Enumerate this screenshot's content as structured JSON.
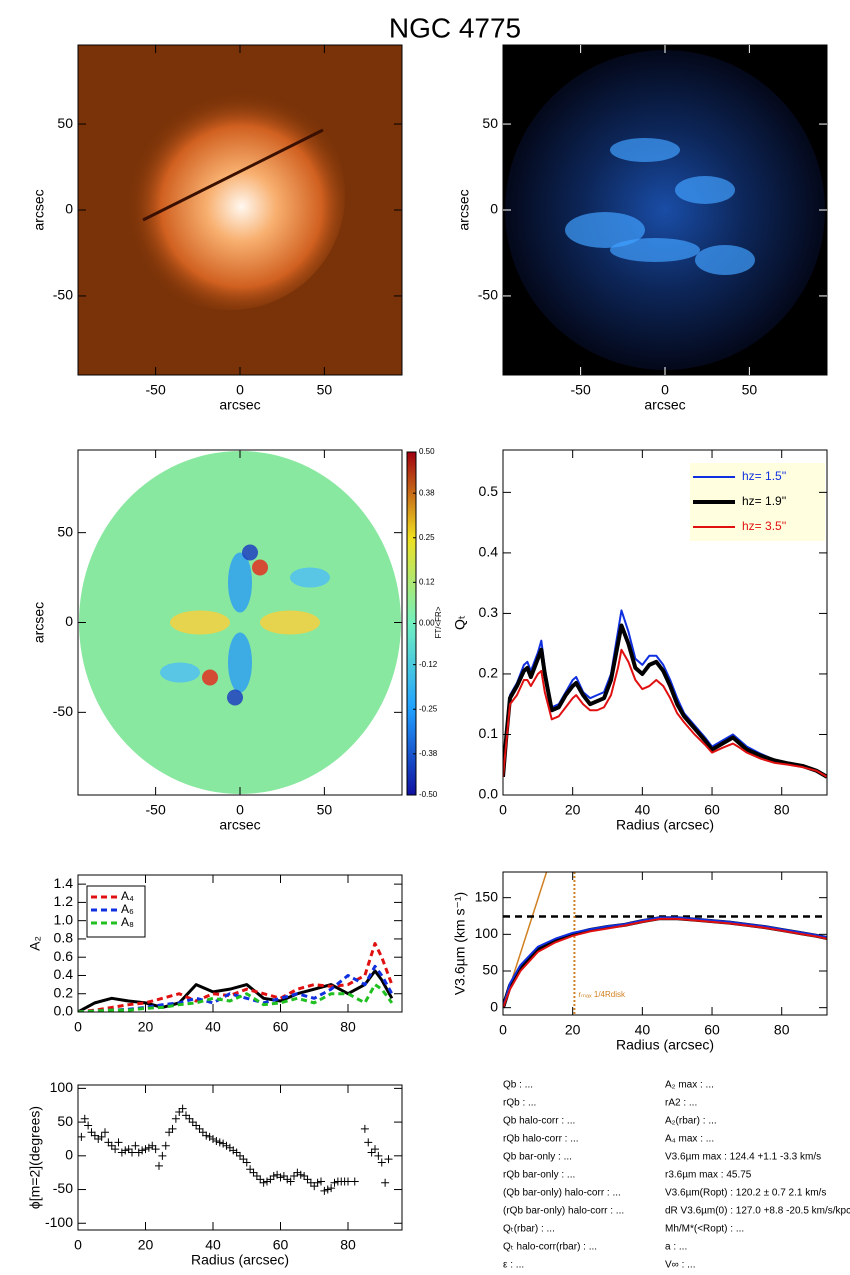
{
  "title": "NGC 4775",
  "chart_data": [
    {
      "type": "image",
      "colormap": "orange",
      "xlim": [
        -96,
        96
      ],
      "ylim": [
        -96,
        96
      ],
      "xticks": [
        -50,
        0,
        50
      ],
      "yticks": [
        -50,
        0,
        50
      ],
      "xlabel": "arcsec",
      "ylabel": "arcsec"
    },
    {
      "type": "image",
      "colormap": "blue",
      "xlim": [
        -96,
        96
      ],
      "ylim": [
        -96,
        96
      ],
      "xticks": [
        -50,
        0,
        50
      ],
      "yticks": [
        -50,
        0,
        50
      ],
      "xlabel": "arcsec",
      "ylabel": "arcsec"
    },
    {
      "type": "map",
      "xlim": [
        -96,
        96
      ],
      "ylim": [
        -96,
        96
      ],
      "xticks": [
        -50,
        0,
        50
      ],
      "yticks": [
        -50,
        0,
        50
      ],
      "xlabel": "arcsec",
      "ylabel": "arcsec",
      "colorbar": {
        "lim": [
          -0.5,
          0.5
        ],
        "label": "FT/<FR>",
        "ticks": [
          {
            "value": 0.5,
            "label": "0.50"
          },
          0.38,
          0.25,
          0.12,
          {
            "value": 0,
            "label": "0.00"
          },
          -0.12,
          -0.25,
          -0.38,
          {
            "value": -0.5,
            "label": "-0.50"
          }
        ]
      }
    },
    {
      "type": "line",
      "xlabel": "Radius (arcsec)",
      "ylabel": "Qₜ",
      "xlim": [
        0,
        93
      ],
      "ylim": [
        0,
        0.57
      ],
      "xticks": [
        0,
        20,
        40,
        60,
        80
      ],
      "yticks": [
        {
          "value": 0,
          "label": "0.0"
        },
        0.1,
        0.2,
        0.3,
        0.4,
        0.5
      ],
      "legend": "upper right",
      "x": [
        0,
        1,
        2,
        4,
        6,
        7,
        8,
        10,
        11,
        12,
        14,
        16,
        18,
        20,
        21,
        23,
        25,
        27,
        29,
        31,
        33,
        34,
        36,
        38,
        40,
        42,
        44,
        46,
        48,
        50,
        52,
        55,
        58,
        60,
        63,
        66,
        68,
        70,
        74,
        78,
        82,
        86,
        90,
        93
      ],
      "series": [
        {
          "name": "hz=  1.5''",
          "color": "#1030e0",
          "values": [
            0.03,
            0.1,
            0.165,
            0.185,
            0.215,
            0.22,
            0.205,
            0.235,
            0.255,
            0.21,
            0.145,
            0.15,
            0.17,
            0.19,
            0.195,
            0.17,
            0.16,
            0.165,
            0.17,
            0.2,
            0.27,
            0.305,
            0.27,
            0.225,
            0.215,
            0.23,
            0.23,
            0.215,
            0.19,
            0.16,
            0.135,
            0.115,
            0.095,
            0.08,
            0.09,
            0.1,
            0.09,
            0.08,
            0.068,
            0.058,
            0.053,
            0.048,
            0.04,
            0.03
          ]
        },
        {
          "name": "hz=  1.9''",
          "color": "#000000",
          "values": [
            0.03,
            0.1,
            0.16,
            0.18,
            0.205,
            0.21,
            0.195,
            0.225,
            0.24,
            0.2,
            0.14,
            0.145,
            0.165,
            0.18,
            0.185,
            0.165,
            0.15,
            0.155,
            0.16,
            0.19,
            0.25,
            0.28,
            0.25,
            0.21,
            0.2,
            0.215,
            0.22,
            0.205,
            0.18,
            0.15,
            0.13,
            0.11,
            0.09,
            0.075,
            0.085,
            0.095,
            0.085,
            0.075,
            0.065,
            0.057,
            0.052,
            0.048,
            0.04,
            0.03
          ]
        },
        {
          "name": "hz=  3.5''",
          "color": "#e01010",
          "values": [
            0.03,
            0.09,
            0.15,
            0.165,
            0.19,
            0.19,
            0.18,
            0.2,
            0.205,
            0.17,
            0.125,
            0.13,
            0.145,
            0.16,
            0.165,
            0.15,
            0.14,
            0.14,
            0.145,
            0.165,
            0.21,
            0.24,
            0.22,
            0.19,
            0.175,
            0.18,
            0.19,
            0.18,
            0.16,
            0.135,
            0.12,
            0.1,
            0.083,
            0.07,
            0.078,
            0.085,
            0.078,
            0.07,
            0.06,
            0.053,
            0.05,
            0.046,
            0.04,
            0.03
          ]
        }
      ]
    },
    {
      "type": "line",
      "ylabel": "A₂",
      "xlim": [
        0,
        96
      ],
      "ylim": [
        0,
        1.5
      ],
      "xticks": [
        0,
        20,
        40,
        60,
        80
      ],
      "yticks": [
        {
          "value": 0,
          "label": "0.0"
        },
        0.2,
        0.4,
        0.6,
        0.8,
        {
          "value": 1,
          "label": "1.0"
        },
        1.2,
        1.4
      ],
      "legend": "upper left",
      "x": [
        0,
        5,
        10,
        15,
        20,
        25,
        30,
        35,
        40,
        45,
        50,
        55,
        60,
        65,
        70,
        75,
        80,
        85,
        88,
        90,
        93
      ],
      "series": [
        {
          "color": "#000000",
          "values": [
            0,
            0.1,
            0.15,
            0.12,
            0.1,
            0.05,
            0.1,
            0.3,
            0.22,
            0.25,
            0.3,
            0.15,
            0.12,
            0.2,
            0.25,
            0.3,
            0.2,
            0.3,
            0.45,
            0.35,
            0.15
          ]
        },
        {
          "name": "A₄",
          "color": "#e01010",
          "dash": true,
          "values": [
            0,
            0.02,
            0.05,
            0.08,
            0.1,
            0.15,
            0.2,
            0.12,
            0.2,
            0.18,
            0.25,
            0.2,
            0.15,
            0.25,
            0.3,
            0.28,
            0.3,
            0.4,
            0.75,
            0.6,
            0.3
          ]
        },
        {
          "name": "A₆",
          "color": "#1030e0",
          "dash": true,
          "values": [
            0,
            0.01,
            0.02,
            0.03,
            0.05,
            0.08,
            0.1,
            0.15,
            0.1,
            0.2,
            0.15,
            0.1,
            0.15,
            0.2,
            0.15,
            0.25,
            0.4,
            0.3,
            0.5,
            0.4,
            0.2
          ]
        },
        {
          "name": "A₈",
          "color": "#20c020",
          "dash": true,
          "values": [
            0,
            0.01,
            0.02,
            0.02,
            0.04,
            0.05,
            0.08,
            0.1,
            0.15,
            0.12,
            0.2,
            0.08,
            0.1,
            0.15,
            0.1,
            0.2,
            0.2,
            0.1,
            0.3,
            0.25,
            0.1
          ]
        }
      ]
    },
    {
      "type": "line",
      "xlabel": "Radius (arcsec)",
      "ylabel": "V3.6µm (km s⁻¹)",
      "xlim": [
        0,
        93
      ],
      "ylim": [
        -10,
        185
      ],
      "xticks": [
        0,
        20,
        40,
        60,
        80
      ],
      "yticks": [
        0,
        50,
        100,
        150
      ],
      "x": [
        0,
        2,
        5,
        10,
        15,
        20,
        25,
        30,
        35,
        40,
        45,
        50,
        55,
        60,
        65,
        70,
        75,
        80,
        85,
        90,
        93
      ],
      "series": [
        {
          "color": "#000000",
          "values": [
            0,
            30,
            55,
            80,
            92,
            100,
            106,
            110,
            113,
            118,
            122,
            122,
            120,
            118,
            116,
            113,
            110,
            106,
            102,
            98,
            95
          ]
        },
        {
          "color": "#1030e0",
          "values": [
            0,
            33,
            58,
            83,
            94,
            102,
            107,
            111,
            114,
            119,
            123,
            123,
            121,
            119,
            117,
            114,
            111,
            107,
            103,
            99,
            96
          ]
        },
        {
          "color": "#e01010",
          "values": [
            0,
            25,
            50,
            76,
            89,
            98,
            104,
            108,
            112,
            117,
            121,
            121,
            119,
            117,
            115,
            112,
            109,
            105,
            101,
            97,
            94
          ]
        }
      ],
      "hline": 124.4,
      "vline": 20.5,
      "slope_line": {
        "x": [
          0,
          12.5
        ],
        "y": [
          0,
          185
        ]
      },
      "annotation": "rₘₐₓ 1/4Rdisk"
    },
    {
      "type": "scatter",
      "xlabel": "Radius (arcsec)",
      "ylabel": "ϕ[m=2](degrees)",
      "xlim": [
        0,
        96
      ],
      "ylim": [
        -110,
        105
      ],
      "xticks": [
        0,
        20,
        40,
        60,
        80
      ],
      "yticks": [
        -100,
        -50,
        0,
        50,
        100
      ],
      "color": "#000000",
      "x": [
        1,
        2,
        3,
        4,
        5,
        6,
        7,
        8,
        9,
        10,
        11,
        12,
        13,
        14,
        15,
        16,
        17,
        18,
        19,
        20,
        21,
        22,
        23,
        24,
        25,
        26,
        27,
        28,
        29,
        30,
        31,
        32,
        33,
        34,
        35,
        36,
        37,
        38,
        39,
        40,
        41,
        42,
        43,
        44,
        45,
        46,
        47,
        48,
        49,
        50,
        51,
        52,
        53,
        54,
        55,
        56,
        57,
        58,
        59,
        60,
        61,
        62,
        63,
        64,
        65,
        66,
        67,
        68,
        69,
        70,
        71,
        72,
        73,
        74,
        75,
        76,
        77,
        78,
        79,
        80,
        82,
        85,
        86,
        87,
        88,
        89,
        90,
        91,
        92
      ],
      "values": [
        28,
        55,
        45,
        35,
        30,
        25,
        28,
        35,
        20,
        15,
        10,
        20,
        5,
        8,
        10,
        5,
        15,
        5,
        8,
        10,
        12,
        15,
        10,
        -15,
        0,
        15,
        35,
        40,
        55,
        65,
        70,
        60,
        55,
        50,
        45,
        40,
        35,
        30,
        28,
        25,
        22,
        20,
        18,
        15,
        12,
        8,
        5,
        0,
        -5,
        -10,
        -20,
        -25,
        -30,
        -35,
        -40,
        -38,
        -35,
        -30,
        -28,
        -32,
        -30,
        -35,
        -38,
        -30,
        -25,
        -28,
        -30,
        -35,
        -40,
        -45,
        -40,
        -38,
        -52,
        -50,
        -48,
        -40,
        -38,
        -38,
        -38,
        -38,
        -38,
        40,
        20,
        5,
        10,
        0,
        -10,
        -40,
        -5
      ]
    }
  ],
  "parameters": {
    "left": [
      "Qb : ...",
      "rQb : ...",
      "Qb halo-corr : ...",
      "rQb halo-corr : ...",
      "Qb bar-only : ...",
      "rQb bar-only : ...",
      "(Qb bar-only) halo-corr : ...",
      "(rQb bar-only) halo-corr : ...",
      "Qₜ(rbar) : ...",
      "Qₜ halo-corr(rbar) : ...",
      "ε : ..."
    ],
    "right": [
      "A₂ max : ...",
      "rA2 : ...",
      "A₂(rbar) : ...",
      "A₄ max : ...",
      "V3.6µm max : 124.4 +1.1 -3.3 km/s",
      "r3.6µm max : 45.75",
      "V3.6µm(Ropt) : 120.2 ± 0.7 2.1 km/s",
      "dR V3.6µm(0) : 127.0 +8.8 -20.5 km/s/kpc",
      "Mh/M*(<Ropt) : ...",
      "a : ...",
      "V∞ : ..."
    ]
  }
}
